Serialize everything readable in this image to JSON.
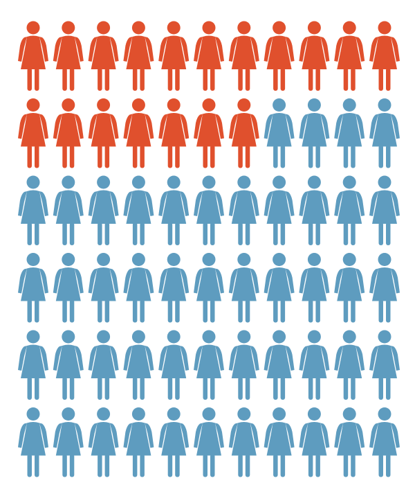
{
  "chart_data": {
    "type": "pictogram",
    "values": [
      18,
      48
    ],
    "colors": [
      "#e0502d",
      "#5e9cbf"
    ]
  }
}
